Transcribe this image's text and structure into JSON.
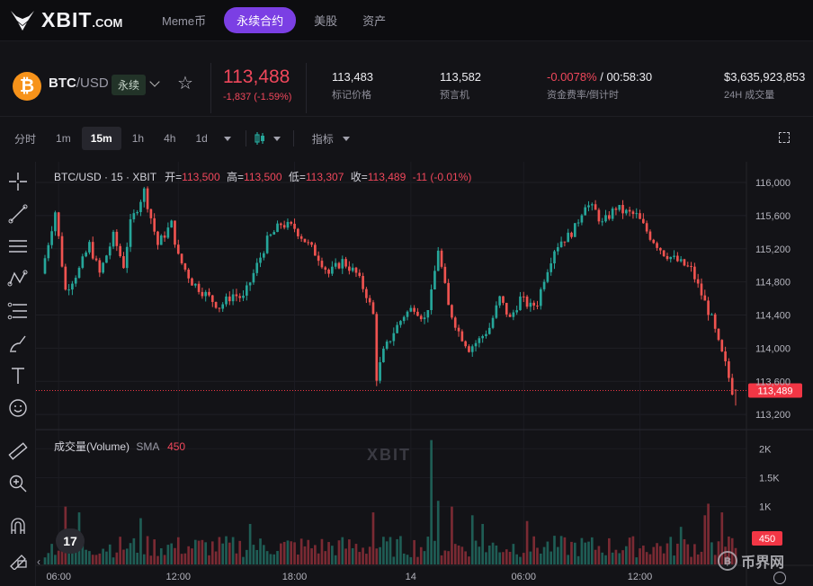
{
  "nav": {
    "logo_text": "XBIT",
    "logo_suffix": ".COM",
    "items": [
      {
        "label": "Meme币",
        "active": false
      },
      {
        "label": "永续合约",
        "active": true
      },
      {
        "label": "美股",
        "active": false
      },
      {
        "label": "资产",
        "active": false
      }
    ]
  },
  "ticker": {
    "coin_icon": "bitcoin-icon",
    "base": "BTC",
    "quote": "/USD",
    "badge": "永续",
    "last_price": "113,488",
    "change": "-1,837 (-1.59%)",
    "stats": [
      {
        "value": "113,483",
        "label": "标记价格"
      },
      {
        "value": "113,582",
        "label": "预言机"
      },
      {
        "value_neg": "-0.0078%",
        "value": "/ 00:58:30",
        "label": "资金费率/倒计时"
      },
      {
        "value": "$3,635,923,853",
        "label": "24H 成交量"
      }
    ]
  },
  "toolbar": {
    "timeframes": [
      "分时",
      "1m",
      "15m",
      "1h",
      "4h",
      "1d"
    ],
    "active_timeframe": "15m",
    "indicators_label": "指标"
  },
  "legend": {
    "symbol": "BTC/USD · 15 · XBIT",
    "open_label": "开=",
    "open": "113,500",
    "high_label": "高=",
    "high": "113,500",
    "low_label": "低=",
    "low": "113,307",
    "close_label": "收=",
    "close": "113,489",
    "delta": "-11 (-0.01%)"
  },
  "volume_legend": {
    "title": "成交量(Volume)",
    "sma_label": "SMA",
    "sma_value": "450"
  },
  "watermark": "XBIT",
  "tv_badge": "17",
  "brand_corner": "币界网",
  "colors": {
    "up": "#26a69a",
    "down": "#ef5350",
    "accent": "#7b3fe4",
    "price_tag": "#f23645"
  },
  "chart_data": {
    "type": "candlestick",
    "interval": "15m",
    "price_axis": {
      "ticks": [
        116000,
        115600,
        115200,
        114800,
        114400,
        114000,
        113600,
        113200
      ],
      "tick_labels": [
        "116,000",
        "115,600",
        "115,200",
        "114,800",
        "114,400",
        "114,000",
        "113,600",
        "113,200"
      ],
      "range": [
        113050,
        116250
      ],
      "current_price": 113489,
      "current_label": "113,489"
    },
    "volume_axis": {
      "ticks": [
        2000,
        1500,
        1000
      ],
      "tick_labels": [
        "2K",
        "1.5K",
        "1K"
      ],
      "range": [
        0,
        2300
      ],
      "current_volume_label": "450",
      "current_volume": 450
    },
    "time_axis": {
      "tick_labels": [
        "06:00",
        "12:00",
        "18:00",
        "14",
        "06:00",
        "12:00"
      ]
    },
    "path_points": [
      [
        0,
        114900
      ],
      [
        4,
        115650
      ],
      [
        7,
        114700
      ],
      [
        11,
        114950
      ],
      [
        14,
        115250
      ],
      [
        17,
        114900
      ],
      [
        21,
        115350
      ],
      [
        24,
        115000
      ],
      [
        26,
        115500
      ],
      [
        30,
        115900
      ],
      [
        34,
        115250
      ],
      [
        38,
        115500
      ],
      [
        40,
        115100
      ],
      [
        44,
        114800
      ],
      [
        48,
        114650
      ],
      [
        52,
        114500
      ],
      [
        56,
        114650
      ],
      [
        59,
        114600
      ],
      [
        62,
        114900
      ],
      [
        66,
        115300
      ],
      [
        70,
        115500
      ],
      [
        74,
        115450
      ],
      [
        78,
        115250
      ],
      [
        81,
        115100
      ],
      [
        84,
        114900
      ],
      [
        88,
        115050
      ],
      [
        92,
        114900
      ],
      [
        95,
        114650
      ],
      [
        97,
        114400
      ],
      [
        98,
        113650
      ],
      [
        100,
        113950
      ],
      [
        103,
        114200
      ],
      [
        106,
        114400
      ],
      [
        109,
        114500
      ],
      [
        112,
        114350
      ],
      [
        114,
        114650
      ],
      [
        116,
        115200
      ],
      [
        119,
        114500
      ],
      [
        122,
        114200
      ],
      [
        125,
        114000
      ],
      [
        128,
        114100
      ],
      [
        131,
        114250
      ],
      [
        134,
        114600
      ],
      [
        137,
        114350
      ],
      [
        140,
        114600
      ],
      [
        143,
        114500
      ],
      [
        145,
        114550
      ],
      [
        147,
        114850
      ],
      [
        150,
        115200
      ],
      [
        152,
        115300
      ],
      [
        154,
        115350
      ],
      [
        156,
        115450
      ],
      [
        159,
        115750
      ],
      [
        162,
        115650
      ],
      [
        164,
        115500
      ],
      [
        168,
        115700
      ],
      [
        170,
        115650
      ],
      [
        174,
        115600
      ],
      [
        178,
        115350
      ],
      [
        182,
        115150
      ],
      [
        186,
        115050
      ],
      [
        190,
        114950
      ],
      [
        193,
        114650
      ],
      [
        196,
        114350
      ],
      [
        198,
        114050
      ],
      [
        200,
        113800
      ],
      [
        202,
        113489
      ]
    ],
    "volume_spikes": [
      [
        6,
        1000
      ],
      [
        10,
        900
      ],
      [
        28,
        800
      ],
      [
        60,
        700
      ],
      [
        96,
        900
      ],
      [
        113,
        2150
      ],
      [
        115,
        1100
      ],
      [
        119,
        1000
      ],
      [
        125,
        850
      ],
      [
        128,
        700
      ],
      [
        141,
        750
      ],
      [
        186,
        650
      ],
      [
        193,
        850
      ],
      [
        194,
        1050
      ],
      [
        198,
        900
      ]
    ]
  }
}
